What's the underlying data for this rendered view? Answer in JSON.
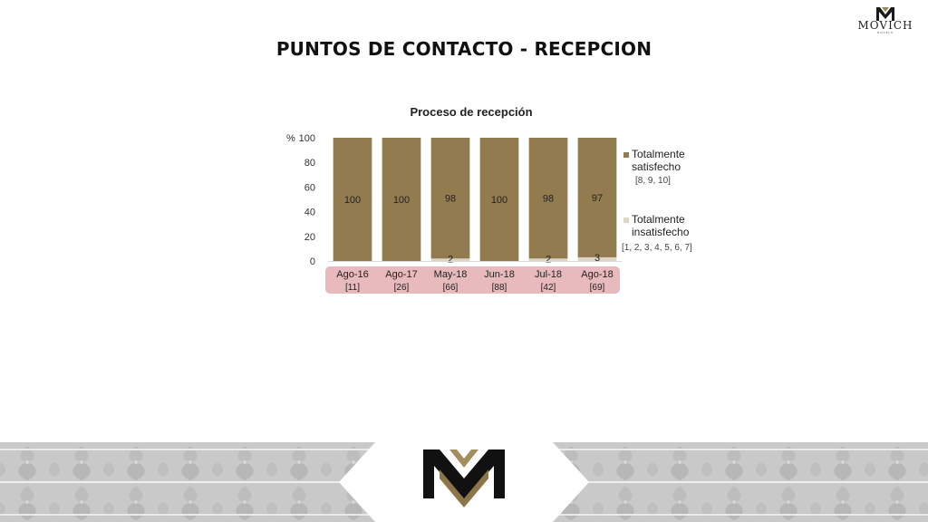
{
  "brand": {
    "name": "MOVICH",
    "sub": "HOTELS"
  },
  "page": {
    "title": "PUNTOS DE CONTACTO - RECEPCION"
  },
  "colors": {
    "satisfied": "#927b4f",
    "unsatisfied": "#ddd5c8",
    "xband": "#e8b9bd",
    "text": "#333333"
  },
  "chart_data": {
    "type": "bar",
    "stacked": true,
    "title": "Proceso de recepción",
    "ylabel": "%",
    "ylim": [
      0,
      100
    ],
    "yticks": [
      "0",
      "20",
      "40",
      "60",
      "80",
      "100"
    ],
    "categories": [
      "Ago-16",
      "Ago-17",
      "May-18",
      "Jun-18",
      "Jul-18",
      "Ago-18"
    ],
    "category_counts": [
      "[11]",
      "[26]",
      "[66]",
      "[88]",
      "[42]",
      "[69]"
    ],
    "series": [
      {
        "name": "Totalmente satisfecho",
        "legend_lines": [
          "Totalmente",
          "satisfecho"
        ],
        "legend_note": "[8, 9, 10]",
        "values": [
          100,
          100,
          98,
          100,
          98,
          97
        ],
        "labels": [
          "100",
          "100",
          "98",
          "100",
          "98",
          "97"
        ]
      },
      {
        "name": "Totalmente insatisfecho",
        "legend_lines": [
          "Totalmente",
          "insatisfecho"
        ],
        "legend_note": "[1, 2, 3, 4, 5, 6, 7]",
        "values": [
          0,
          0,
          2,
          0,
          2,
          3
        ],
        "labels": [
          "",
          "",
          "2",
          "",
          "2",
          "3"
        ]
      }
    ],
    "grid": false,
    "legend_position": "right"
  }
}
